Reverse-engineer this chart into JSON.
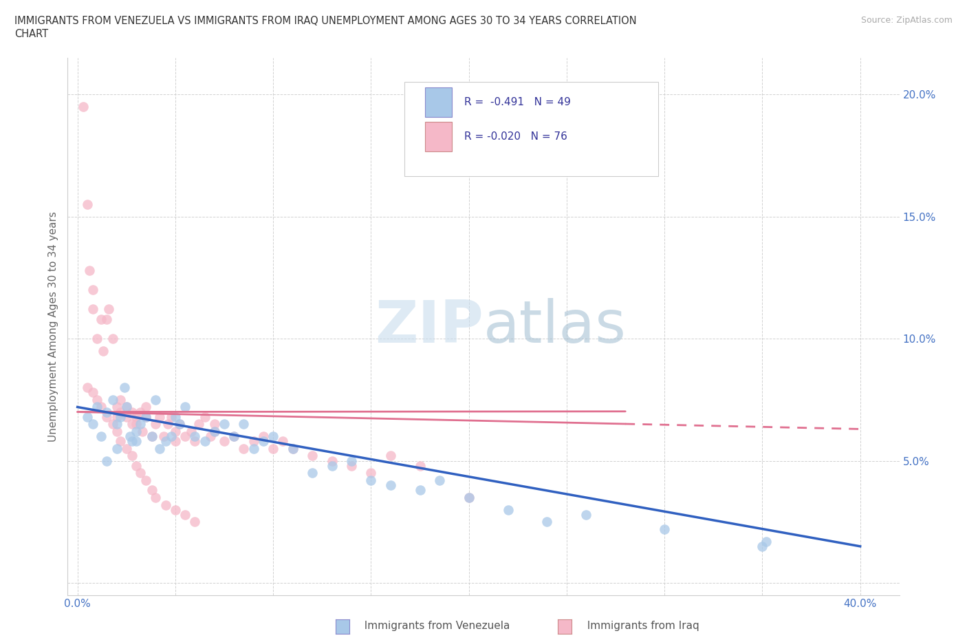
{
  "title_line1": "IMMIGRANTS FROM VENEZUELA VS IMMIGRANTS FROM IRAQ UNEMPLOYMENT AMONG AGES 30 TO 34 YEARS CORRELATION",
  "title_line2": "CHART",
  "source": "Source: ZipAtlas.com",
  "ylabel": "Unemployment Among Ages 30 to 34 years",
  "xlabel_venezuela": "Immigrants from Venezuela",
  "xlabel_iraq": "Immigrants from Iraq",
  "xlim": [
    -0.005,
    0.42
  ],
  "ylim": [
    -0.005,
    0.215
  ],
  "xticks": [
    0.0,
    0.05,
    0.1,
    0.15,
    0.2,
    0.25,
    0.3,
    0.35,
    0.4
  ],
  "xticklabels": [
    "0.0%",
    "",
    "",
    "",
    "",
    "",
    "",
    "",
    "40.0%"
  ],
  "yticks": [
    0.0,
    0.05,
    0.1,
    0.15,
    0.2
  ],
  "yticklabels": [
    "",
    "5.0%",
    "10.0%",
    "15.0%",
    "20.0%"
  ],
  "venezuela_color": "#a8c8e8",
  "iraq_color": "#f5b8c8",
  "venezuela_line_color": "#3060c0",
  "iraq_line_color": "#e07090",
  "watermark_color": "#d8e8f0",
  "venezuela_scatter_x": [
    0.005,
    0.008,
    0.01,
    0.012,
    0.015,
    0.018,
    0.02,
    0.022,
    0.024,
    0.025,
    0.027,
    0.028,
    0.03,
    0.032,
    0.035,
    0.038,
    0.04,
    0.042,
    0.045,
    0.048,
    0.05,
    0.052,
    0.055,
    0.06,
    0.065,
    0.07,
    0.075,
    0.08,
    0.085,
    0.09,
    0.095,
    0.1,
    0.11,
    0.12,
    0.13,
    0.14,
    0.15,
    0.16,
    0.175,
    0.185,
    0.2,
    0.22,
    0.24,
    0.26,
    0.3,
    0.35,
    0.352,
    0.015,
    0.02,
    0.03
  ],
  "venezuela_scatter_y": [
    0.068,
    0.065,
    0.072,
    0.06,
    0.07,
    0.075,
    0.065,
    0.068,
    0.08,
    0.072,
    0.06,
    0.058,
    0.062,
    0.065,
    0.068,
    0.06,
    0.075,
    0.055,
    0.058,
    0.06,
    0.068,
    0.065,
    0.072,
    0.06,
    0.058,
    0.062,
    0.065,
    0.06,
    0.065,
    0.055,
    0.058,
    0.06,
    0.055,
    0.045,
    0.048,
    0.05,
    0.042,
    0.04,
    0.038,
    0.042,
    0.035,
    0.03,
    0.025,
    0.028,
    0.022,
    0.015,
    0.017,
    0.05,
    0.055,
    0.058
  ],
  "iraq_scatter_x": [
    0.003,
    0.005,
    0.006,
    0.008,
    0.008,
    0.01,
    0.012,
    0.013,
    0.015,
    0.016,
    0.018,
    0.02,
    0.02,
    0.022,
    0.022,
    0.025,
    0.025,
    0.028,
    0.028,
    0.03,
    0.03,
    0.032,
    0.033,
    0.035,
    0.035,
    0.038,
    0.04,
    0.042,
    0.044,
    0.046,
    0.048,
    0.05,
    0.05,
    0.052,
    0.055,
    0.058,
    0.06,
    0.062,
    0.065,
    0.068,
    0.07,
    0.07,
    0.075,
    0.08,
    0.085,
    0.09,
    0.095,
    0.1,
    0.105,
    0.11,
    0.12,
    0.13,
    0.14,
    0.15,
    0.16,
    0.175,
    0.005,
    0.008,
    0.01,
    0.012,
    0.015,
    0.018,
    0.02,
    0.022,
    0.025,
    0.028,
    0.03,
    0.032,
    0.035,
    0.038,
    0.04,
    0.045,
    0.05,
    0.055,
    0.06,
    0.2
  ],
  "iraq_scatter_y": [
    0.195,
    0.155,
    0.128,
    0.12,
    0.112,
    0.1,
    0.108,
    0.095,
    0.108,
    0.112,
    0.1,
    0.068,
    0.072,
    0.07,
    0.075,
    0.072,
    0.068,
    0.07,
    0.065,
    0.068,
    0.065,
    0.07,
    0.062,
    0.068,
    0.072,
    0.06,
    0.065,
    0.068,
    0.06,
    0.065,
    0.068,
    0.062,
    0.058,
    0.065,
    0.06,
    0.062,
    0.058,
    0.065,
    0.068,
    0.06,
    0.065,
    0.062,
    0.058,
    0.06,
    0.055,
    0.058,
    0.06,
    0.055,
    0.058,
    0.055,
    0.052,
    0.05,
    0.048,
    0.045,
    0.052,
    0.048,
    0.08,
    0.078,
    0.075,
    0.072,
    0.068,
    0.065,
    0.062,
    0.058,
    0.055,
    0.052,
    0.048,
    0.045,
    0.042,
    0.038,
    0.035,
    0.032,
    0.03,
    0.028,
    0.025,
    0.035
  ],
  "ven_line_x0": 0.0,
  "ven_line_x1": 0.4,
  "ven_line_y0": 0.072,
  "ven_line_y1": 0.015,
  "iraq_line_x0": 0.0,
  "iraq_line_x1": 0.4,
  "iraq_line_y0": 0.07,
  "iraq_line_y1": 0.063
}
